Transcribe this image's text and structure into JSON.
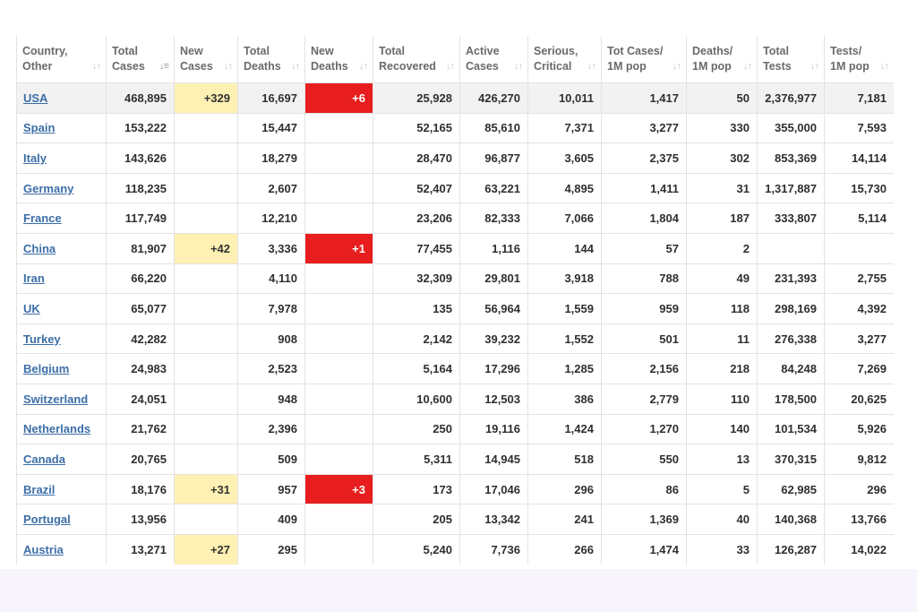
{
  "columns": [
    {
      "label": "Country,\nOther",
      "line1": "Country,",
      "line2": "Other",
      "sort_icon": "sort-icon"
    },
    {
      "line1": "Total",
      "line2": "Cases",
      "sort_icon": "sort-desc-active-icon"
    },
    {
      "line1": "New",
      "line2": "Cases",
      "sort_icon": "sort-icon"
    },
    {
      "line1": "Total",
      "line2": "Deaths",
      "sort_icon": "sort-icon"
    },
    {
      "line1": "New",
      "line2": "Deaths",
      "sort_icon": "sort-icon"
    },
    {
      "line1": "Total",
      "line2": "Recovered",
      "sort_icon": "sort-icon"
    },
    {
      "line1": "Active",
      "line2": "Cases",
      "sort_icon": "sort-icon"
    },
    {
      "line1": "Serious,",
      "line2": "Critical",
      "sort_icon": "sort-icon"
    },
    {
      "line1": "Tot Cases/",
      "line2": "1M pop",
      "sort_icon": "sort-icon"
    },
    {
      "line1": "Deaths/",
      "line2": "1M pop",
      "sort_icon": "sort-icon"
    },
    {
      "line1": "Total",
      "line2": "Tests",
      "sort_icon": "sort-icon"
    },
    {
      "line1": "Tests/",
      "line2": "1M pop",
      "sort_icon": "sort-icon"
    }
  ],
  "rows": [
    {
      "country": "USA",
      "total_cases": "468,895",
      "new_cases": "+329",
      "total_deaths": "16,697",
      "new_deaths": "+6",
      "total_recovered": "25,928",
      "active_cases": "426,270",
      "serious_critical": "10,011",
      "tot_cases_per_1m": "1,417",
      "deaths_per_1m": "50",
      "total_tests": "2,376,977",
      "tests_per_1m": "7,181"
    },
    {
      "country": "Spain",
      "total_cases": "153,222",
      "new_cases": "",
      "total_deaths": "15,447",
      "new_deaths": "",
      "total_recovered": "52,165",
      "active_cases": "85,610",
      "serious_critical": "7,371",
      "tot_cases_per_1m": "3,277",
      "deaths_per_1m": "330",
      "total_tests": "355,000",
      "tests_per_1m": "7,593"
    },
    {
      "country": "Italy",
      "total_cases": "143,626",
      "new_cases": "",
      "total_deaths": "18,279",
      "new_deaths": "",
      "total_recovered": "28,470",
      "active_cases": "96,877",
      "serious_critical": "3,605",
      "tot_cases_per_1m": "2,375",
      "deaths_per_1m": "302",
      "total_tests": "853,369",
      "tests_per_1m": "14,114"
    },
    {
      "country": "Germany",
      "total_cases": "118,235",
      "new_cases": "",
      "total_deaths": "2,607",
      "new_deaths": "",
      "total_recovered": "52,407",
      "active_cases": "63,221",
      "serious_critical": "4,895",
      "tot_cases_per_1m": "1,411",
      "deaths_per_1m": "31",
      "total_tests": "1,317,887",
      "tests_per_1m": "15,730"
    },
    {
      "country": "France",
      "total_cases": "117,749",
      "new_cases": "",
      "total_deaths": "12,210",
      "new_deaths": "",
      "total_recovered": "23,206",
      "active_cases": "82,333",
      "serious_critical": "7,066",
      "tot_cases_per_1m": "1,804",
      "deaths_per_1m": "187",
      "total_tests": "333,807",
      "tests_per_1m": "5,114"
    },
    {
      "country": "China",
      "total_cases": "81,907",
      "new_cases": "+42",
      "total_deaths": "3,336",
      "new_deaths": "+1",
      "total_recovered": "77,455",
      "active_cases": "1,116",
      "serious_critical": "144",
      "tot_cases_per_1m": "57",
      "deaths_per_1m": "2",
      "total_tests": "",
      "tests_per_1m": ""
    },
    {
      "country": "Iran",
      "total_cases": "66,220",
      "new_cases": "",
      "total_deaths": "4,110",
      "new_deaths": "",
      "total_recovered": "32,309",
      "active_cases": "29,801",
      "serious_critical": "3,918",
      "tot_cases_per_1m": "788",
      "deaths_per_1m": "49",
      "total_tests": "231,393",
      "tests_per_1m": "2,755"
    },
    {
      "country": "UK",
      "total_cases": "65,077",
      "new_cases": "",
      "total_deaths": "7,978",
      "new_deaths": "",
      "total_recovered": "135",
      "active_cases": "56,964",
      "serious_critical": "1,559",
      "tot_cases_per_1m": "959",
      "deaths_per_1m": "118",
      "total_tests": "298,169",
      "tests_per_1m": "4,392"
    },
    {
      "country": "Turkey",
      "total_cases": "42,282",
      "new_cases": "",
      "total_deaths": "908",
      "new_deaths": "",
      "total_recovered": "2,142",
      "active_cases": "39,232",
      "serious_critical": "1,552",
      "tot_cases_per_1m": "501",
      "deaths_per_1m": "11",
      "total_tests": "276,338",
      "tests_per_1m": "3,277"
    },
    {
      "country": "Belgium",
      "total_cases": "24,983",
      "new_cases": "",
      "total_deaths": "2,523",
      "new_deaths": "",
      "total_recovered": "5,164",
      "active_cases": "17,296",
      "serious_critical": "1,285",
      "tot_cases_per_1m": "2,156",
      "deaths_per_1m": "218",
      "total_tests": "84,248",
      "tests_per_1m": "7,269"
    },
    {
      "country": "Switzerland",
      "total_cases": "24,051",
      "new_cases": "",
      "total_deaths": "948",
      "new_deaths": "",
      "total_recovered": "10,600",
      "active_cases": "12,503",
      "serious_critical": "386",
      "tot_cases_per_1m": "2,779",
      "deaths_per_1m": "110",
      "total_tests": "178,500",
      "tests_per_1m": "20,625"
    },
    {
      "country": "Netherlands",
      "total_cases": "21,762",
      "new_cases": "",
      "total_deaths": "2,396",
      "new_deaths": "",
      "total_recovered": "250",
      "active_cases": "19,116",
      "serious_critical": "1,424",
      "tot_cases_per_1m": "1,270",
      "deaths_per_1m": "140",
      "total_tests": "101,534",
      "tests_per_1m": "5,926"
    },
    {
      "country": "Canada",
      "total_cases": "20,765",
      "new_cases": "",
      "total_deaths": "509",
      "new_deaths": "",
      "total_recovered": "5,311",
      "active_cases": "14,945",
      "serious_critical": "518",
      "tot_cases_per_1m": "550",
      "deaths_per_1m": "13",
      "total_tests": "370,315",
      "tests_per_1m": "9,812"
    },
    {
      "country": "Brazil",
      "total_cases": "18,176",
      "new_cases": "+31",
      "total_deaths": "957",
      "new_deaths": "+3",
      "total_recovered": "173",
      "active_cases": "17,046",
      "serious_critical": "296",
      "tot_cases_per_1m": "86",
      "deaths_per_1m": "5",
      "total_tests": "62,985",
      "tests_per_1m": "296"
    },
    {
      "country": "Portugal",
      "total_cases": "13,956",
      "new_cases": "",
      "total_deaths": "409",
      "new_deaths": "",
      "total_recovered": "205",
      "active_cases": "13,342",
      "serious_critical": "241",
      "tot_cases_per_1m": "1,369",
      "deaths_per_1m": "40",
      "total_tests": "140,368",
      "tests_per_1m": "13,766"
    },
    {
      "country": "Austria",
      "total_cases": "13,271",
      "new_cases": "+27",
      "total_deaths": "295",
      "new_deaths": "",
      "total_recovered": "5,240",
      "active_cases": "7,736",
      "serious_critical": "266",
      "tot_cases_per_1m": "1,474",
      "deaths_per_1m": "33",
      "total_tests": "126,287",
      "tests_per_1m": "14,022"
    }
  ],
  "partial_row": {
    "new_cases_highlight": true,
    "new_deaths_highlight": true
  },
  "highlighted_row_index": 0,
  "colors": {
    "link": "#3c6ea7",
    "new_cases_highlight": "#fff0b3",
    "new_deaths_highlight": "#e81e1e",
    "header_text": "#6a6a6a",
    "row_highlight": "#f2f2f2"
  }
}
